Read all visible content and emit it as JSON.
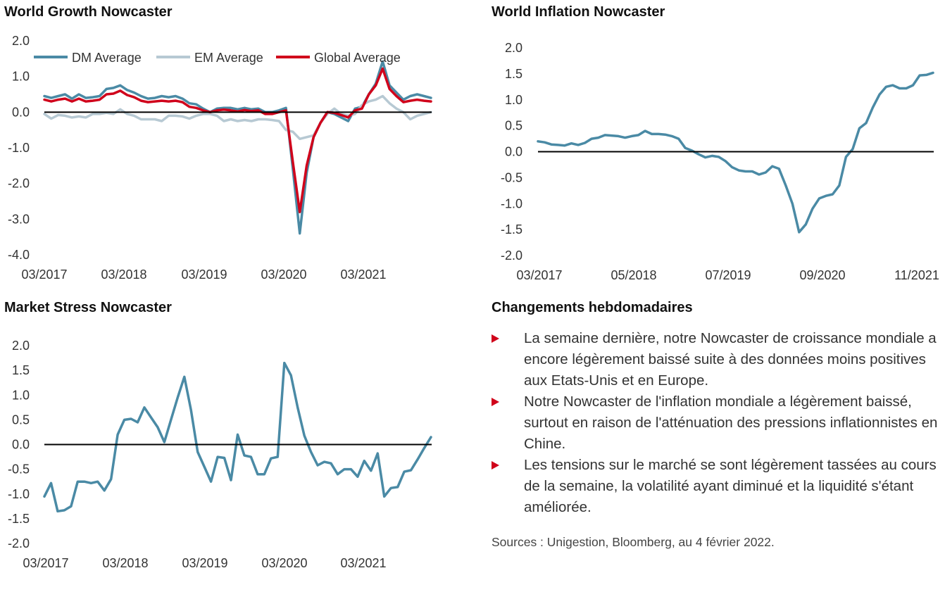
{
  "titles": {
    "growth": "World Growth Nowcaster",
    "inflation": "World Inflation Nowcaster",
    "stress": "Market Stress Nowcaster",
    "changes": "Changements hebdomadaires"
  },
  "colors": {
    "dm": "#4a8aa5",
    "em": "#b7c9d3",
    "global": "#d0021b",
    "stress": "#4a8aa5",
    "bullet": "#d0021b"
  },
  "bullets": [
    "La semaine dernière, notre Nowcaster de croissance mondiale a encore légèrement baissé suite à des données moins positives aux Etats-Unis et en Europe.",
    "Notre Nowcaster de l'inflation mondiale a légèrement baissé, surtout en raison de l'atténuation des pressions inflationnistes en Chine.",
    "Les tensions sur le marché se sont légèrement tassées au cours de la semaine, la volatilité ayant diminué et la liquidité s'étant améliorée."
  ],
  "sources": "Sources : Unigestion, Bloomberg, au 4 février 2022.",
  "chart_data": [
    {
      "id": "growth",
      "type": "line",
      "title": "World Growth Nowcaster",
      "ylim": [
        -4.0,
        2.0
      ],
      "y_ticks": [
        "2.0",
        "1.0",
        "0.0",
        "-1.0",
        "-2.0",
        "-3.0",
        "-4.0"
      ],
      "x_ticks": [
        "03/2017",
        "03/2018",
        "03/2019",
        "03/2020",
        "03/2021"
      ],
      "legend": "top",
      "series": [
        {
          "name": "DM Average",
          "key": "dm",
          "values": [
            0.45,
            0.4,
            0.45,
            0.5,
            0.38,
            0.5,
            0.4,
            0.42,
            0.45,
            0.65,
            0.68,
            0.75,
            0.62,
            0.55,
            0.45,
            0.38,
            0.4,
            0.45,
            0.42,
            0.45,
            0.38,
            0.25,
            0.22,
            0.1,
            0.0,
            0.1,
            0.12,
            0.12,
            0.08,
            0.12,
            0.08,
            0.1,
            0.0,
            0.0,
            0.05,
            0.12,
            -1.6,
            -3.4,
            -1.7,
            -0.7,
            -0.3,
            0.0,
            -0.05,
            -0.15,
            -0.25,
            0.1,
            0.15,
            0.5,
            0.8,
            1.42,
            0.75,
            0.55,
            0.35,
            0.45,
            0.5,
            0.45,
            0.4
          ]
        },
        {
          "name": "EM Average",
          "key": "em",
          "values": [
            -0.05,
            -0.18,
            -0.08,
            -0.1,
            -0.15,
            -0.12,
            -0.15,
            -0.05,
            -0.05,
            -0.02,
            -0.05,
            0.08,
            -0.05,
            -0.1,
            -0.2,
            -0.2,
            -0.2,
            -0.25,
            -0.1,
            -0.1,
            -0.12,
            -0.18,
            -0.1,
            -0.05,
            -0.05,
            -0.1,
            -0.25,
            -0.2,
            -0.25,
            -0.22,
            -0.25,
            -0.2,
            -0.2,
            -0.22,
            -0.25,
            -0.5,
            -0.55,
            -0.75,
            -0.7,
            -0.65,
            -0.3,
            -0.05,
            0.1,
            -0.05,
            -0.1,
            -0.05,
            0.2,
            0.3,
            0.35,
            0.45,
            0.25,
            0.1,
            0.0,
            -0.2,
            -0.1,
            -0.05,
            0.0
          ]
        },
        {
          "name": "Global Average",
          "key": "global",
          "values": [
            0.35,
            0.3,
            0.35,
            0.38,
            0.3,
            0.38,
            0.3,
            0.32,
            0.35,
            0.5,
            0.52,
            0.6,
            0.48,
            0.42,
            0.32,
            0.28,
            0.3,
            0.32,
            0.3,
            0.32,
            0.28,
            0.15,
            0.12,
            0.05,
            0.0,
            0.05,
            0.07,
            0.05,
            0.02,
            0.06,
            0.03,
            0.05,
            -0.05,
            -0.05,
            0.0,
            0.05,
            -1.4,
            -2.8,
            -1.5,
            -0.7,
            -0.3,
            0.0,
            -0.02,
            -0.08,
            -0.15,
            0.05,
            0.1,
            0.5,
            0.75,
            1.22,
            0.65,
            0.45,
            0.28,
            0.32,
            0.35,
            0.32,
            0.3
          ]
        }
      ]
    },
    {
      "id": "inflation",
      "type": "line",
      "title": "World Inflation Nowcaster",
      "ylim": [
        -2.0,
        2.0
      ],
      "y_ticks": [
        "2.0",
        "1.5",
        "1.0",
        "0.5",
        "0.0",
        "-0.5",
        "-1.0",
        "-1.5",
        "-2.0"
      ],
      "x_ticks": [
        "03/2017",
        "05/2018",
        "07/2019",
        "09/2020",
        "11/2021"
      ],
      "series": [
        {
          "name": "",
          "key": "dm",
          "values": [
            0.2,
            0.18,
            0.14,
            0.13,
            0.12,
            0.16,
            0.13,
            0.17,
            0.25,
            0.27,
            0.32,
            0.31,
            0.3,
            0.27,
            0.3,
            0.32,
            0.4,
            0.34,
            0.34,
            0.33,
            0.3,
            0.25,
            0.07,
            0.02,
            -0.05,
            -0.11,
            -0.08,
            -0.1,
            -0.18,
            -0.3,
            -0.36,
            -0.38,
            -0.38,
            -0.44,
            -0.4,
            -0.28,
            -0.33,
            -0.65,
            -1.0,
            -1.55,
            -1.4,
            -1.1,
            -0.9,
            -0.85,
            -0.82,
            -0.65,
            -0.1,
            0.05,
            0.45,
            0.55,
            0.85,
            1.1,
            1.25,
            1.28,
            1.22,
            1.22,
            1.28,
            1.47,
            1.48,
            1.52
          ]
        }
      ]
    },
    {
      "id": "stress",
      "type": "line",
      "title": "Market Stress Nowcaster",
      "ylim": [
        -2.0,
        2.0
      ],
      "y_ticks": [
        "2.0",
        "1.5",
        "1.0",
        "0.5",
        "0.0",
        "-0.5",
        "-1.0",
        "-1.5",
        "-2.0"
      ],
      "x_ticks": [
        "03/2017",
        "03/2018",
        "03/2019",
        "03/2020",
        "03/2021"
      ],
      "series": [
        {
          "name": "",
          "key": "stress",
          "values": [
            -1.05,
            -0.78,
            -1.35,
            -1.33,
            -1.25,
            -0.75,
            -0.75,
            -0.78,
            -0.75,
            -0.93,
            -0.7,
            0.2,
            0.5,
            0.52,
            0.45,
            0.75,
            0.55,
            0.35,
            0.05,
            0.5,
            0.95,
            1.37,
            0.7,
            -0.15,
            -0.45,
            -0.75,
            -0.25,
            -0.27,
            -0.72,
            0.2,
            -0.22,
            -0.25,
            -0.6,
            -0.6,
            -0.28,
            -0.25,
            1.65,
            1.4,
            0.75,
            0.18,
            -0.15,
            -0.42,
            -0.35,
            -0.38,
            -0.6,
            -0.5,
            -0.5,
            -0.65,
            -0.33,
            -0.53,
            -0.18,
            -1.05,
            -0.88,
            -0.86,
            -0.55,
            -0.52,
            -0.3,
            -0.07,
            0.15
          ]
        }
      ]
    }
  ]
}
